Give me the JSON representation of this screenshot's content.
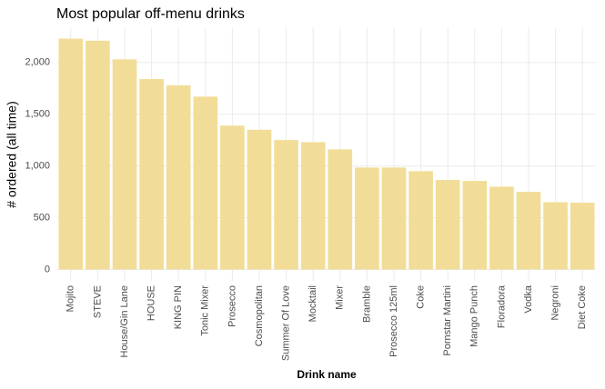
{
  "chart_data": {
    "type": "bar",
    "title": "Most popular off-menu drinks",
    "x_label": "Drink name",
    "y_label": "# ordered (all time)",
    "categories": [
      "Mojito",
      "STEVE",
      "House/Gin Lane",
      "HOUSE",
      "KING PIN",
      "Tonic Mixer",
      "Prosecco",
      "Cosmopolitan",
      "Summer Of Love",
      "Mocktail",
      "Mixer",
      "Bramble",
      "Prosecco 125ml",
      "Coke",
      "Pornstar Martini",
      "Mango Punch",
      "Floradora",
      "Vodka",
      "Negroni",
      "Diet Coke"
    ],
    "values": [
      2230,
      2210,
      2030,
      1840,
      1780,
      1670,
      1390,
      1350,
      1250,
      1230,
      1160,
      985,
      985,
      950,
      865,
      855,
      800,
      750,
      650,
      645
    ],
    "color": "#f2dd98",
    "ylim": [
      -110,
      2340
    ],
    "yticks": [
      0,
      500,
      {
        "value": 1000,
        "label": "1,000"
      },
      {
        "value": 1500,
        "label": "1,500"
      },
      {
        "value": 2000,
        "label": "2,000"
      }
    ],
    "grid": true
  }
}
